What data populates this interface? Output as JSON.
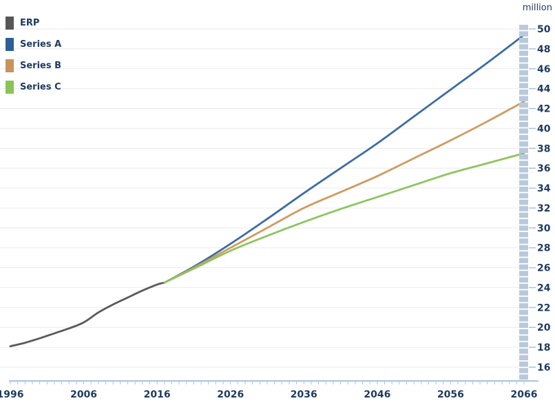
{
  "chart_data": {
    "type": "line",
    "title": "",
    "xlabel": "",
    "ylabel": "million",
    "xlim": [
      1996,
      2066
    ],
    "ylim": [
      16,
      50
    ],
    "x_ticks": [
      1996,
      2006,
      2016,
      2026,
      2036,
      2046,
      2056,
      2066
    ],
    "x_minor_tick_step": 1,
    "y_ticks": [
      16,
      18,
      20,
      22,
      24,
      26,
      28,
      30,
      32,
      34,
      36,
      38,
      40,
      42,
      44,
      46,
      48,
      50
    ],
    "grid": "horizontal",
    "legend_position": "top-left",
    "series": [
      {
        "name": "ERP",
        "color": "#58595b",
        "points": [
          [
            1996,
            18.1
          ],
          [
            1998,
            18.45
          ],
          [
            2000,
            18.9
          ],
          [
            2002,
            19.4
          ],
          [
            2004,
            19.9
          ],
          [
            2006,
            20.5
          ],
          [
            2008,
            21.5
          ],
          [
            2010,
            22.3
          ],
          [
            2012,
            23.0
          ],
          [
            2014,
            23.7
          ],
          [
            2016,
            24.3
          ],
          [
            2017,
            24.5
          ]
        ]
      },
      {
        "name": "Series A",
        "color": "#3a6ca6",
        "points": [
          [
            2017,
            24.5
          ],
          [
            2021,
            26.1
          ],
          [
            2026,
            28.4
          ],
          [
            2031,
            30.9
          ],
          [
            2036,
            33.5
          ],
          [
            2041,
            36.0
          ],
          [
            2046,
            38.5
          ],
          [
            2051,
            41.2
          ],
          [
            2056,
            43.9
          ],
          [
            2061,
            46.6
          ],
          [
            2066,
            49.4
          ]
        ]
      },
      {
        "name": "Series B",
        "color": "#d09a5e",
        "points": [
          [
            2017,
            24.5
          ],
          [
            2021,
            26.0
          ],
          [
            2026,
            28.0
          ],
          [
            2031,
            30.0
          ],
          [
            2036,
            32.0
          ],
          [
            2041,
            33.6
          ],
          [
            2046,
            35.2
          ],
          [
            2051,
            37.0
          ],
          [
            2056,
            38.8
          ],
          [
            2061,
            40.7
          ],
          [
            2066,
            42.7
          ]
        ]
      },
      {
        "name": "Series C",
        "color": "#8ec45e",
        "points": [
          [
            2017,
            24.5
          ],
          [
            2021,
            25.9
          ],
          [
            2026,
            27.7
          ],
          [
            2031,
            29.2
          ],
          [
            2036,
            30.6
          ],
          [
            2041,
            31.9
          ],
          [
            2046,
            33.1
          ],
          [
            2051,
            34.3
          ],
          [
            2056,
            35.5
          ],
          [
            2061,
            36.5
          ],
          [
            2066,
            37.5
          ]
        ]
      }
    ]
  },
  "legend": {
    "items": [
      {
        "label": "ERP",
        "color": "#565656"
      },
      {
        "label": "Series A",
        "color": "#2e5f94"
      },
      {
        "label": "Series B",
        "color": "#c6945c"
      },
      {
        "label": "Series C",
        "color": "#8ac455"
      }
    ]
  },
  "colors": {
    "background": "#ffffff",
    "grid": "#ebebeb",
    "axis": "#a9c3dd",
    "label": "#1e3a5f",
    "column": "#b9c9db"
  }
}
